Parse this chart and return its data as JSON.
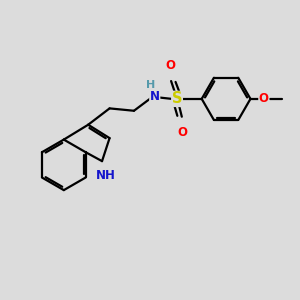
{
  "bg_color": "#dcdcdc",
  "bond_color": "#000000",
  "bond_width": 1.6,
  "dbo": 0.055,
  "atom_colors": {
    "N": "#1414cc",
    "S": "#cccc00",
    "O": "#ff0000",
    "NH_label_color": "#5599aa"
  },
  "font_size": 8.5,
  "figsize": [
    3.0,
    3.0
  ],
  "dpi": 100,
  "xlim": [
    0,
    10
  ],
  "ylim": [
    0,
    10
  ]
}
